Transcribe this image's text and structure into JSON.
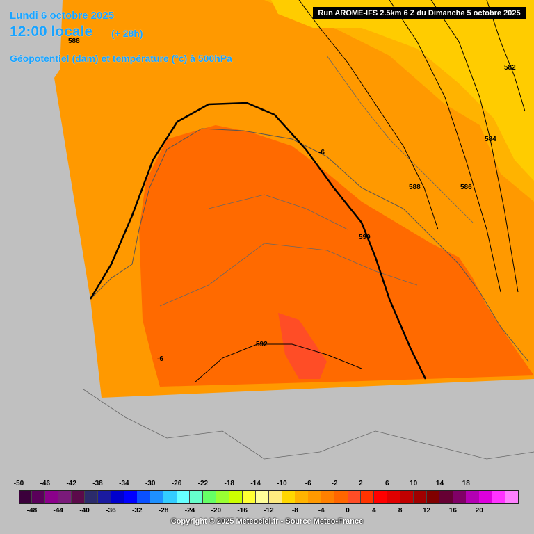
{
  "header": {
    "date": "Lundi 6 octobre 2025",
    "time": "12:00 locale",
    "lead": "(+ 28h)",
    "parameter": "Géopotentiel (dam) et température (°c) à 500hPa",
    "run": "Run AROME-IFS 2.5km 6 Z du Dimanche 5 octobre 2025"
  },
  "contour_labels": [
    "588",
    "582",
    "584",
    "-6",
    "588",
    "586",
    "590",
    "592",
    "-6"
  ],
  "legend": {
    "top_labels": [
      "-50",
      "-46",
      "-42",
      "-38",
      "-34",
      "-30",
      "-26",
      "-22",
      "-18",
      "-14",
      "-10",
      "-6",
      "-2",
      "2",
      "6",
      "10",
      "14",
      "18"
    ],
    "bottom_labels": [
      "-48",
      "-44",
      "-40",
      "-36",
      "-32",
      "-28",
      "-24",
      "-20",
      "-16",
      "-12",
      "-8",
      "-4",
      "0",
      "4",
      "8",
      "12",
      "16",
      "20"
    ],
    "colors": [
      "#3b003b",
      "#5a005a",
      "#8b008b",
      "#7a1a7a",
      "#5b0a4a",
      "#2b2b6b",
      "#1a1aa0",
      "#0000cd",
      "#0000ff",
      "#0a50ff",
      "#1e90ff",
      "#33ccff",
      "#66ffff",
      "#66ffcc",
      "#66ff66",
      "#99ff33",
      "#ccff00",
      "#ffff33",
      "#ffff99",
      "#ffeb80",
      "#ffd700",
      "#ffb300",
      "#ff9900",
      "#ff8000",
      "#ff6600",
      "#ff4d26",
      "#ff3300",
      "#ff0000",
      "#e00000",
      "#c00000",
      "#a00000",
      "#800000",
      "#660033",
      "#800066",
      "#b300b3",
      "#dd00dd",
      "#ff33ff",
      "#ff80ff"
    ]
  },
  "copyright": "Copyright © 2025 Meteociel.fr - Source Meteo-France"
}
